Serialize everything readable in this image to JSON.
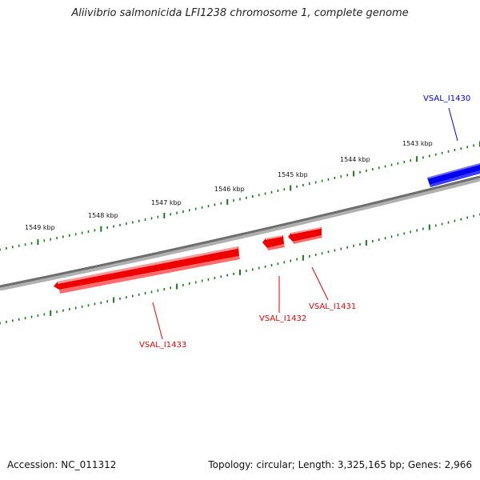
{
  "title": "Aliivibrio salmonicida LFI1238 chromosome 1, complete genome",
  "footer": {
    "accession": "Accession: NC_011312",
    "stats": "Topology: circular; Length: 3,325,165 bp; Genes: 2,966"
  },
  "scale_ticks": [
    "1549 kbp",
    "1548 kbp",
    "1547 kbp",
    "1546 kbp",
    "1545 kbp",
    "1544 kbp",
    "1543 kbp"
  ],
  "genes": [
    {
      "label": "VSAL_I1430",
      "strand": "forward",
      "color": "#0000ee"
    },
    {
      "label": "VSAL_I1431",
      "strand": "reverse",
      "color": "#ee0000"
    },
    {
      "label": "VSAL_I1432",
      "strand": "reverse",
      "color": "#ee0000"
    },
    {
      "label": "VSAL_I1433",
      "strand": "reverse",
      "color": "#ee0000"
    }
  ],
  "colors": {
    "backbone": "#7a7a7a",
    "tick": "#1a7a1a",
    "forward_gene": "#0000ee",
    "reverse_gene": "#ee0000"
  }
}
